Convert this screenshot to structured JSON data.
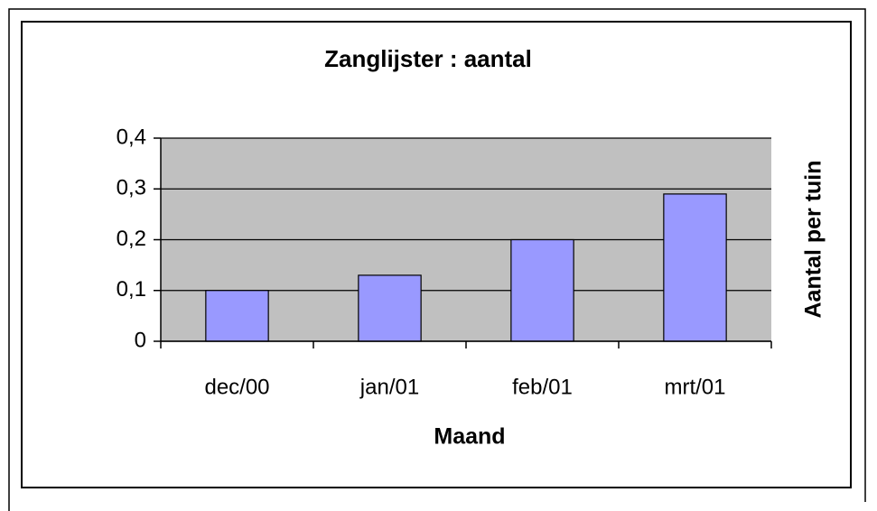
{
  "chart_data": {
    "type": "bar",
    "title": "Zanglijster : aantal",
    "x_label": "Maand",
    "y_label": "Aantal per tuin",
    "categories": [
      "dec/00",
      "jan/01",
      "feb/01",
      "mrt/01"
    ],
    "values": [
      0.1,
      0.13,
      0.2,
      0.29
    ],
    "color": "#9999ff",
    "ylim": [
      0,
      0.4
    ],
    "yticks": [
      0,
      {
        "value": 0.1,
        "label": "0,1"
      },
      {
        "value": 0.2,
        "label": "0,2"
      },
      {
        "value": 0.3,
        "label": "0,3"
      },
      {
        "value": 0.4,
        "label": "0,4"
      }
    ],
    "grid": true
  }
}
